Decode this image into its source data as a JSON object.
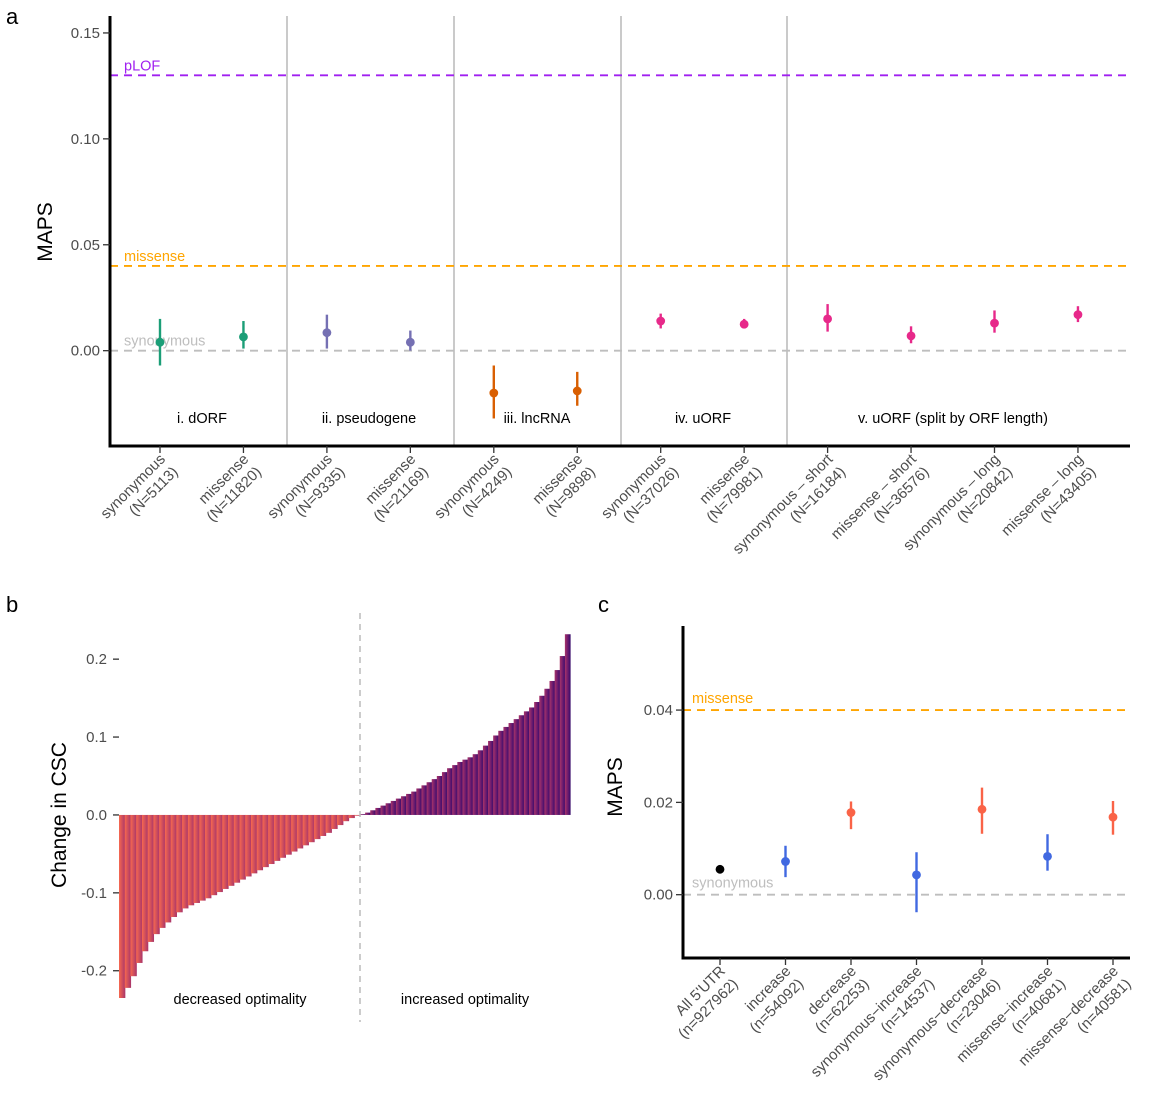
{
  "panel_labels": [
    "a",
    "b",
    "c"
  ],
  "chart_data": [
    {
      "panel": "a",
      "type": "scatter",
      "ylabel": "MAPS",
      "ylim": [
        -0.045,
        0.158
      ],
      "yticks": [
        0,
        0.05,
        0.1,
        0.15
      ],
      "ytick_labels": [
        "0.00",
        "0.05",
        "0.10",
        "0.15"
      ],
      "grid": false,
      "categories": [
        [
          "synonymous",
          "(N=5113)"
        ],
        [
          "missense",
          "(N=11820)"
        ],
        [
          "synonymous",
          "(N=9335)"
        ],
        [
          "missense",
          "(N=21169)"
        ],
        [
          "synonymous",
          "(N=4249)"
        ],
        [
          "missense",
          "(N=9898)"
        ],
        [
          "synonymous",
          "(N=37026)"
        ],
        [
          "missense",
          "(N=79981)"
        ],
        [
          "synonymous – short",
          "(N=16184)"
        ],
        [
          "missense – short",
          "(N=36576)"
        ],
        [
          "synonymous – long",
          "(N=20842)"
        ],
        [
          "missense – long",
          "(N=43405)"
        ]
      ],
      "reference_lines": [
        {
          "label": "pLOF",
          "y": 0.13,
          "color": "#a020f0"
        },
        {
          "label": "missense",
          "y": 0.04,
          "color": "#ffa500"
        },
        {
          "label": "synonymous",
          "y": 0.0,
          "color": "#bebebe"
        }
      ],
      "groups": [
        {
          "label": "i. dORF",
          "color": "#1b9e77",
          "points": [
            {
              "y": 0.004,
              "lo": -0.007,
              "hi": 0.015
            },
            {
              "y": 0.0065,
              "lo": 0.001,
              "hi": 0.014
            }
          ]
        },
        {
          "label": "ii. pseudogene",
          "color": "#7570b3",
          "points": [
            {
              "y": 0.0085,
              "lo": 0.001,
              "hi": 0.017
            },
            {
              "y": 0.004,
              "lo": 0.0,
              "hi": 0.0095
            }
          ]
        },
        {
          "label": "iii. lncRNA",
          "color": "#d95f02",
          "points": [
            {
              "y": -0.02,
              "lo": -0.032,
              "hi": -0.007
            },
            {
              "y": -0.019,
              "lo": -0.026,
              "hi": -0.01
            }
          ]
        },
        {
          "label": "iv. uORF",
          "color": "#e7298a",
          "points": [
            {
              "y": 0.014,
              "lo": 0.0105,
              "hi": 0.0175
            },
            {
              "y": 0.0125,
              "lo": 0.0105,
              "hi": 0.015
            }
          ]
        },
        {
          "label": "v. uORF (split by ORF length)",
          "color": "#e7298a",
          "points": [
            {
              "y": 0.015,
              "lo": 0.009,
              "hi": 0.022
            },
            {
              "y": 0.007,
              "lo": 0.0035,
              "hi": 0.0115
            },
            {
              "y": 0.013,
              "lo": 0.0085,
              "hi": 0.019
            },
            {
              "y": 0.017,
              "lo": 0.0135,
              "hi": 0.021
            }
          ]
        }
      ]
    },
    {
      "panel": "b",
      "type": "bar",
      "ylabel": "Change in CSC",
      "ylim": [
        -0.235,
        0.24
      ],
      "yticks": [
        -0.2,
        -0.1,
        0.0,
        0.1,
        0.2
      ],
      "ytick_labels": [
        "-0.2",
        "-0.1",
        "0.0",
        "0.1",
        "0.2"
      ],
      "annotations": [
        "decreased optimality",
        "increased optimality"
      ],
      "grid": false,
      "decreased_values": [
        -0.235,
        -0.222,
        -0.207,
        -0.19,
        -0.175,
        -0.163,
        -0.153,
        -0.145,
        -0.138,
        -0.131,
        -0.125,
        -0.12,
        -0.116,
        -0.113,
        -0.11,
        -0.107,
        -0.103,
        -0.099,
        -0.095,
        -0.091,
        -0.087,
        -0.083,
        -0.079,
        -0.075,
        -0.071,
        -0.067,
        -0.063,
        -0.059,
        -0.055,
        -0.051,
        -0.047,
        -0.043,
        -0.039,
        -0.035,
        -0.031,
        -0.027,
        -0.023,
        -0.018,
        -0.013,
        -0.008,
        -0.004,
        -0.001
      ],
      "increased_values": [
        0.001,
        0.003,
        0.006,
        0.009,
        0.012,
        0.015,
        0.018,
        0.021,
        0.024,
        0.027,
        0.03,
        0.034,
        0.038,
        0.042,
        0.046,
        0.05,
        0.055,
        0.06,
        0.064,
        0.068,
        0.071,
        0.074,
        0.078,
        0.083,
        0.089,
        0.095,
        0.102,
        0.108,
        0.113,
        0.118,
        0.123,
        0.128,
        0.133,
        0.138,
        0.145,
        0.153,
        0.162,
        0.172,
        0.186,
        0.204,
        0.232
      ]
    },
    {
      "panel": "c",
      "type": "scatter",
      "ylabel": "MAPS",
      "ylim": [
        -0.0135,
        0.058
      ],
      "yticks": [
        0.0,
        0.02,
        0.04
      ],
      "ytick_labels": [
        "0.00",
        "0.02",
        "0.04"
      ],
      "grid": false,
      "reference_lines": [
        {
          "label": "missense",
          "y": 0.04,
          "color": "#ffa500"
        },
        {
          "label": "synonymous",
          "y": 0.0,
          "color": "#bebebe"
        }
      ],
      "categories": [
        [
          "All 5'UTR",
          "(n=927962)"
        ],
        [
          "increase",
          "(n=54092)"
        ],
        [
          "decrease",
          "(n=62253)"
        ],
        [
          "synonymous−increase",
          "(n=14537)"
        ],
        [
          "synonymous−decrease",
          "(n=23046)"
        ],
        [
          "missense−increase",
          "(n=40681)"
        ],
        [
          "missense−decrease",
          "(n=40581)"
        ]
      ],
      "points": [
        {
          "y": 0.0055,
          "lo": 0.0052,
          "hi": 0.0058,
          "color": "#000000"
        },
        {
          "y": 0.0072,
          "lo": 0.0038,
          "hi": 0.0106,
          "color": "#4169e1"
        },
        {
          "y": 0.0178,
          "lo": 0.0142,
          "hi": 0.0202,
          "color": "#fa6347"
        },
        {
          "y": 0.0043,
          "lo": -0.0038,
          "hi": 0.0092,
          "color": "#4169e1"
        },
        {
          "y": 0.0185,
          "lo": 0.0132,
          "hi": 0.0232,
          "color": "#fa6347"
        },
        {
          "y": 0.0083,
          "lo": 0.0052,
          "hi": 0.0131,
          "color": "#4169e1"
        },
        {
          "y": 0.0168,
          "lo": 0.013,
          "hi": 0.0203,
          "color": "#fa6347"
        }
      ]
    }
  ]
}
